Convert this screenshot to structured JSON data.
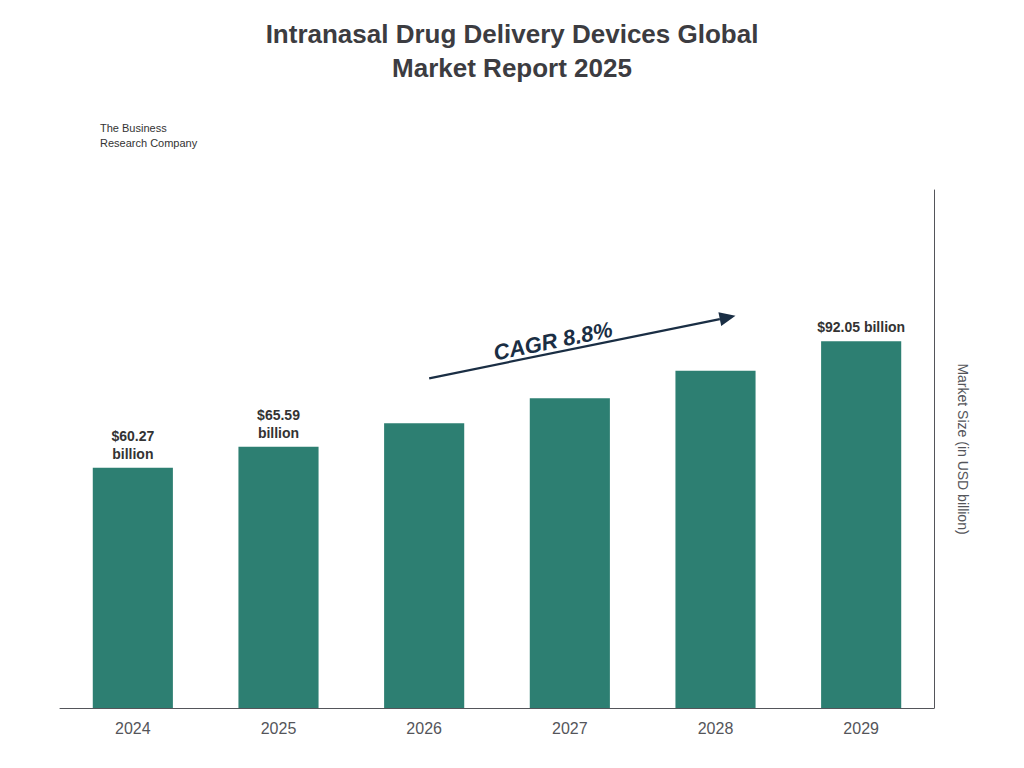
{
  "chart_data": {
    "type": "bar",
    "title": "Intranasal Drug Delivery Devices Global\nMarket Report 2025",
    "categories": [
      "2024",
      "2025",
      "2026",
      "2027",
      "2028",
      "2029"
    ],
    "values": [
      60.27,
      65.59,
      71.45,
      77.75,
      84.61,
      92.05
    ],
    "value_labels": [
      "$60.27\nbillion",
      "$65.59\nbillion",
      null,
      null,
      null,
      "$92.05 billion"
    ],
    "color": "#2d7f72",
    "ylabel": "Market Size (in USD billion)",
    "ylim": [
      0,
      130
    ],
    "grid": false,
    "tick_labels": "x",
    "annotations": [
      {
        "text": "CAGR 8.8%",
        "from": "2026",
        "to": "2028"
      },
      {
        "text": "The Business\nResearch Company"
      }
    ]
  }
}
